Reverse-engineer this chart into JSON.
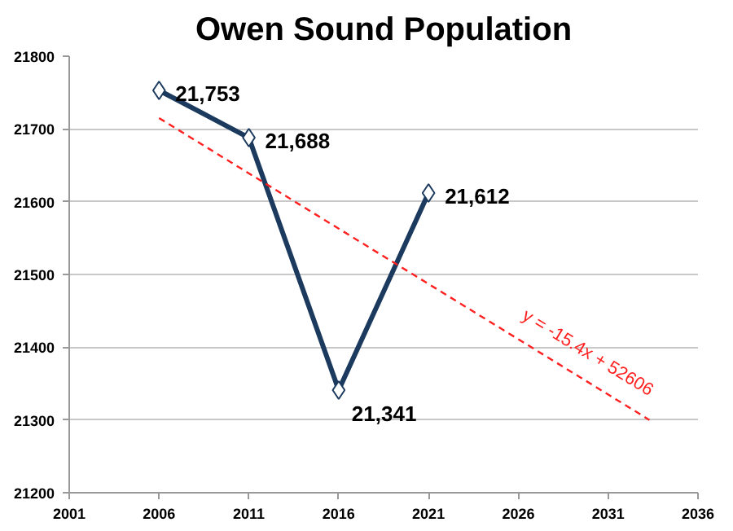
{
  "chart_data": {
    "type": "line",
    "title": "Owen Sound Population",
    "x": [
      2006,
      2011,
      2016,
      2021
    ],
    "series": [
      {
        "color": "#1b3a5e",
        "values": [
          21753,
          21688,
          21341,
          21612
        ],
        "value_labels": [
          "21,753",
          "21,688",
          "21,341",
          "21,612"
        ],
        "marker": "diamond",
        "line_style": "solid"
      },
      {
        "color": "#ff2020",
        "x": [
          2006,
          2033.3
        ],
        "values": [
          21715,
          21300
        ],
        "marker": "none",
        "line_style": "dashed"
      }
    ],
    "annotations": [
      "y = -15.4x + 52606"
    ],
    "xlim": [
      2001,
      2036
    ],
    "xticks": [
      2001,
      2006,
      2011,
      2016,
      2021,
      2026,
      2031,
      2036
    ],
    "ylim": [
      21200,
      21800
    ],
    "yticks": [
      21200,
      21300,
      21400,
      21500,
      21600,
      21700,
      21800
    ],
    "grid": "y"
  }
}
